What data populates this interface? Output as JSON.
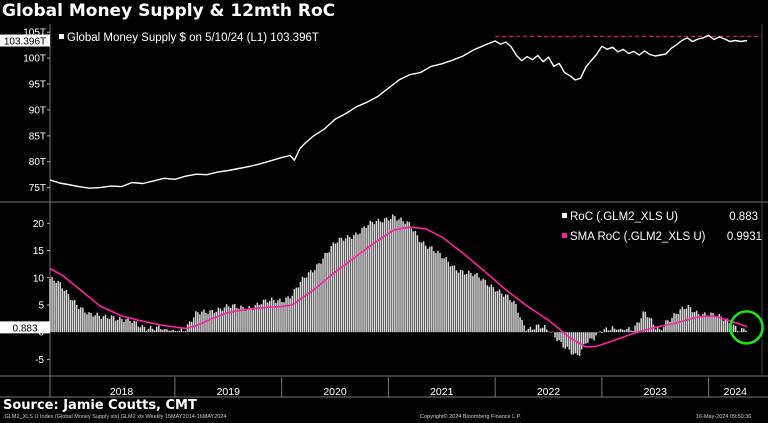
{
  "title": "Global Money Supply & 12mth RoC",
  "source": "Source: Jamie Coutts, CMT",
  "footer": {
    "left": ".GLM2_XLS U Index (Global Money Supply xls) GLM2 xls  Weekly 15MAY2014-16MAY2024",
    "center": "Copyright© 2024 Bloomberg Finance L.P.",
    "right": "16-May-2024 09:50:36"
  },
  "colors": {
    "background": "#000000",
    "supply_line": "#ffffff",
    "sma_line": "#ff1fa6",
    "roc_bars": "#d9d9d9",
    "reference_line": "#e0202a",
    "highlight_circle": "#1ee01e"
  },
  "chart_data": [
    {
      "type": "line",
      "panel": "top",
      "legend": "Global Money Supply $ on 5/10/24 (L1) 103.396T",
      "last_value_label": "103.396T",
      "yticks": [
        "75T",
        "80T",
        "85T",
        "90T",
        "95T",
        "100T",
        "105T"
      ],
      "ytick_values": [
        75,
        80,
        85,
        90,
        95,
        100,
        105
      ],
      "ylim": [
        73,
        106.2
      ],
      "reference_level": 104.2,
      "series": [
        {
          "values": [
            [
              2017.83,
              76.5
            ],
            [
              2017.92,
              75.9
            ],
            [
              2018.0,
              75.6
            ],
            [
              2018.1,
              75.2
            ],
            [
              2018.2,
              74.9
            ],
            [
              2018.3,
              75.0
            ],
            [
              2018.4,
              75.3
            ],
            [
              2018.5,
              75.2
            ],
            [
              2018.6,
              76.0
            ],
            [
              2018.7,
              75.8
            ],
            [
              2018.8,
              76.3
            ],
            [
              2018.9,
              76.8
            ],
            [
              2019.0,
              76.6
            ],
            [
              2019.1,
              77.2
            ],
            [
              2019.2,
              77.6
            ],
            [
              2019.3,
              77.5
            ],
            [
              2019.4,
              78.0
            ],
            [
              2019.5,
              78.3
            ],
            [
              2019.6,
              78.7
            ],
            [
              2019.7,
              79.1
            ],
            [
              2019.8,
              79.6
            ],
            [
              2019.9,
              80.2
            ],
            [
              2020.0,
              80.8
            ],
            [
              2020.08,
              81.2
            ],
            [
              2020.12,
              80.3
            ],
            [
              2020.17,
              82.5
            ],
            [
              2020.22,
              83.6
            ],
            [
              2020.3,
              85.0
            ],
            [
              2020.4,
              86.3
            ],
            [
              2020.5,
              88.2
            ],
            [
              2020.6,
              89.3
            ],
            [
              2020.7,
              90.6
            ],
            [
              2020.8,
              91.5
            ],
            [
              2020.9,
              92.6
            ],
            [
              2021.0,
              94.2
            ],
            [
              2021.1,
              95.8
            ],
            [
              2021.2,
              96.8
            ],
            [
              2021.3,
              97.2
            ],
            [
              2021.4,
              98.4
            ],
            [
              2021.5,
              98.9
            ],
            [
              2021.6,
              99.6
            ],
            [
              2021.7,
              100.4
            ],
            [
              2021.8,
              101.6
            ],
            [
              2021.9,
              102.5
            ],
            [
              2022.0,
              103.3
            ],
            [
              2022.05,
              102.7
            ],
            [
              2022.1,
              103.1
            ],
            [
              2022.15,
              102.2
            ],
            [
              2022.2,
              100.5
            ],
            [
              2022.25,
              99.5
            ],
            [
              2022.3,
              100.3
            ],
            [
              2022.35,
              99.7
            ],
            [
              2022.4,
              100.5
            ],
            [
              2022.45,
              99.3
            ],
            [
              2022.5,
              100.2
            ],
            [
              2022.55,
              98.4
            ],
            [
              2022.6,
              99.0
            ],
            [
              2022.65,
              97.2
            ],
            [
              2022.7,
              96.6
            ],
            [
              2022.75,
              95.8
            ],
            [
              2022.8,
              96.1
            ],
            [
              2022.85,
              98.3
            ],
            [
              2022.9,
              99.5
            ],
            [
              2022.95,
              100.7
            ],
            [
              2023.0,
              102.3
            ],
            [
              2023.05,
              101.7
            ],
            [
              2023.1,
              102.1
            ],
            [
              2023.15,
              101.2
            ],
            [
              2023.2,
              101.7
            ],
            [
              2023.25,
              100.9
            ],
            [
              2023.3,
              101.3
            ],
            [
              2023.35,
              100.6
            ],
            [
              2023.4,
              101.4
            ],
            [
              2023.45,
              100.7
            ],
            [
              2023.5,
              100.4
            ],
            [
              2023.55,
              100.6
            ],
            [
              2023.6,
              100.8
            ],
            [
              2023.65,
              101.9
            ],
            [
              2023.7,
              102.6
            ],
            [
              2023.75,
              103.4
            ],
            [
              2023.8,
              103.9
            ],
            [
              2023.85,
              103.2
            ],
            [
              2023.9,
              103.7
            ],
            [
              2023.95,
              103.9
            ],
            [
              2024.0,
              104.4
            ],
            [
              2024.05,
              103.6
            ],
            [
              2024.1,
              104.1
            ],
            [
              2024.15,
              103.7
            ],
            [
              2024.2,
              103.2
            ],
            [
              2024.25,
              103.4
            ],
            [
              2024.3,
              103.2
            ],
            [
              2024.36,
              103.396
            ]
          ]
        }
      ]
    },
    {
      "type": "bar",
      "panel": "bottom",
      "legend_roc": "RoC (.GLM2_XLS U)",
      "legend_roc_value": "0.883",
      "legend_sma": "SMA RoC (.GLM2_XLS U)",
      "legend_sma_value": "0.9931",
      "last_value_label": "0.883",
      "yticks": [
        "-5",
        "0",
        "5",
        "10",
        "15",
        "20"
      ],
      "ytick_values": [
        -5,
        0,
        5,
        10,
        15,
        20
      ],
      "ylim": [
        -7.5,
        23
      ],
      "series": [
        {
          "name": "RoC (.GLM2_XLS U)",
          "values": [
            [
              2017.83,
              9.8
            ],
            [
              2017.9,
              9.0
            ],
            [
              2018.0,
              7.0
            ],
            [
              2018.1,
              5.0
            ],
            [
              2018.2,
              3.0
            ],
            [
              2018.3,
              2.8
            ],
            [
              2018.4,
              3.2
            ],
            [
              2018.5,
              2.2
            ],
            [
              2018.6,
              1.8
            ],
            [
              2018.7,
              1.2
            ],
            [
              2018.8,
              0.8
            ],
            [
              2018.9,
              0.4
            ],
            [
              2019.0,
              0.3
            ],
            [
              2019.1,
              0.8
            ],
            [
              2019.15,
              2.0
            ],
            [
              2019.2,
              3.2
            ],
            [
              2019.3,
              3.7
            ],
            [
              2019.4,
              4.4
            ],
            [
              2019.5,
              4.6
            ],
            [
              2019.6,
              4.4
            ],
            [
              2019.7,
              4.7
            ],
            [
              2019.8,
              5.3
            ],
            [
              2019.9,
              5.6
            ],
            [
              2020.0,
              6.0
            ],
            [
              2020.1,
              7.0
            ],
            [
              2020.2,
              9.5
            ],
            [
              2020.3,
              11.6
            ],
            [
              2020.4,
              14.2
            ],
            [
              2020.5,
              16.2
            ],
            [
              2020.6,
              17.3
            ],
            [
              2020.7,
              18.3
            ],
            [
              2020.8,
              19.5
            ],
            [
              2020.9,
              20.2
            ],
            [
              2021.0,
              21.2
            ],
            [
              2021.05,
              21.6
            ],
            [
              2021.1,
              20.7
            ],
            [
              2021.2,
              19.5
            ],
            [
              2021.3,
              17.0
            ],
            [
              2021.4,
              15.6
            ],
            [
              2021.5,
              13.7
            ],
            [
              2021.6,
              12.2
            ],
            [
              2021.7,
              11.3
            ],
            [
              2021.8,
              10.4
            ],
            [
              2021.9,
              9.3
            ],
            [
              2022.0,
              8.3
            ],
            [
              2022.1,
              6.6
            ],
            [
              2022.2,
              4.6
            ],
            [
              2022.25,
              2.0
            ],
            [
              2022.3,
              0.8
            ],
            [
              2022.4,
              1.2
            ],
            [
              2022.5,
              0.2
            ],
            [
              2022.6,
              -1.5
            ],
            [
              2022.7,
              -3.2
            ],
            [
              2022.75,
              -4.5
            ],
            [
              2022.8,
              -4.2
            ],
            [
              2022.85,
              -2.0
            ],
            [
              2022.9,
              -1.4
            ],
            [
              2023.0,
              0.6
            ],
            [
              2023.1,
              0.5
            ],
            [
              2023.2,
              0.4
            ],
            [
              2023.3,
              1.0
            ],
            [
              2023.4,
              3.7
            ],
            [
              2023.5,
              0.7
            ],
            [
              2023.55,
              0.4
            ],
            [
              2023.6,
              2.1
            ],
            [
              2023.7,
              3.6
            ],
            [
              2023.8,
              4.4
            ],
            [
              2023.9,
              3.5
            ],
            [
              2024.0,
              3.6
            ],
            [
              2024.1,
              2.6
            ],
            [
              2024.2,
              1.7
            ],
            [
              2024.3,
              0.6
            ],
            [
              2024.36,
              0.883
            ]
          ]
        },
        {
          "name": "SMA RoC (.GLM2_XLS U)",
          "values": [
            [
              2017.83,
              11.7
            ],
            [
              2017.95,
              10.4
            ],
            [
              2018.1,
              8.0
            ],
            [
              2018.3,
              4.8
            ],
            [
              2018.5,
              3.0
            ],
            [
              2018.7,
              2.0
            ],
            [
              2018.9,
              1.2
            ],
            [
              2019.1,
              0.7
            ],
            [
              2019.2,
              1.2
            ],
            [
              2019.35,
              2.5
            ],
            [
              2019.5,
              3.6
            ],
            [
              2019.7,
              4.3
            ],
            [
              2019.9,
              4.6
            ],
            [
              2020.0,
              4.7
            ],
            [
              2020.1,
              5.0
            ],
            [
              2020.3,
              7.8
            ],
            [
              2020.5,
              11.0
            ],
            [
              2020.7,
              14.0
            ],
            [
              2020.9,
              16.8
            ],
            [
              2021.05,
              18.8
            ],
            [
              2021.2,
              19.3
            ],
            [
              2021.35,
              19.0
            ],
            [
              2021.5,
              17.5
            ],
            [
              2021.7,
              14.5
            ],
            [
              2021.9,
              11.2
            ],
            [
              2022.1,
              7.8
            ],
            [
              2022.3,
              4.8
            ],
            [
              2022.5,
              2.2
            ],
            [
              2022.7,
              -1.0
            ],
            [
              2022.85,
              -2.7
            ],
            [
              2022.95,
              -2.6
            ],
            [
              2023.1,
              -1.6
            ],
            [
              2023.3,
              -0.2
            ],
            [
              2023.5,
              0.9
            ],
            [
              2023.7,
              1.7
            ],
            [
              2023.9,
              2.8
            ],
            [
              2024.05,
              3.0
            ],
            [
              2024.2,
              2.1
            ],
            [
              2024.36,
              0.9931
            ]
          ]
        }
      ]
    }
  ],
  "x_axis": {
    "labels": [
      "2018",
      "2019",
      "2020",
      "2021",
      "2022",
      "2023",
      "2024"
    ],
    "label_positions": [
      2018.5,
      2019.5,
      2020.5,
      2021.5,
      2022.5,
      2023.5,
      2024.25
    ],
    "year_boundaries": [
      2019.0,
      2020.0,
      2021.0,
      2022.0,
      2023.0,
      2024.0
    ],
    "xlim": [
      2017.83,
      2024.5
    ]
  }
}
